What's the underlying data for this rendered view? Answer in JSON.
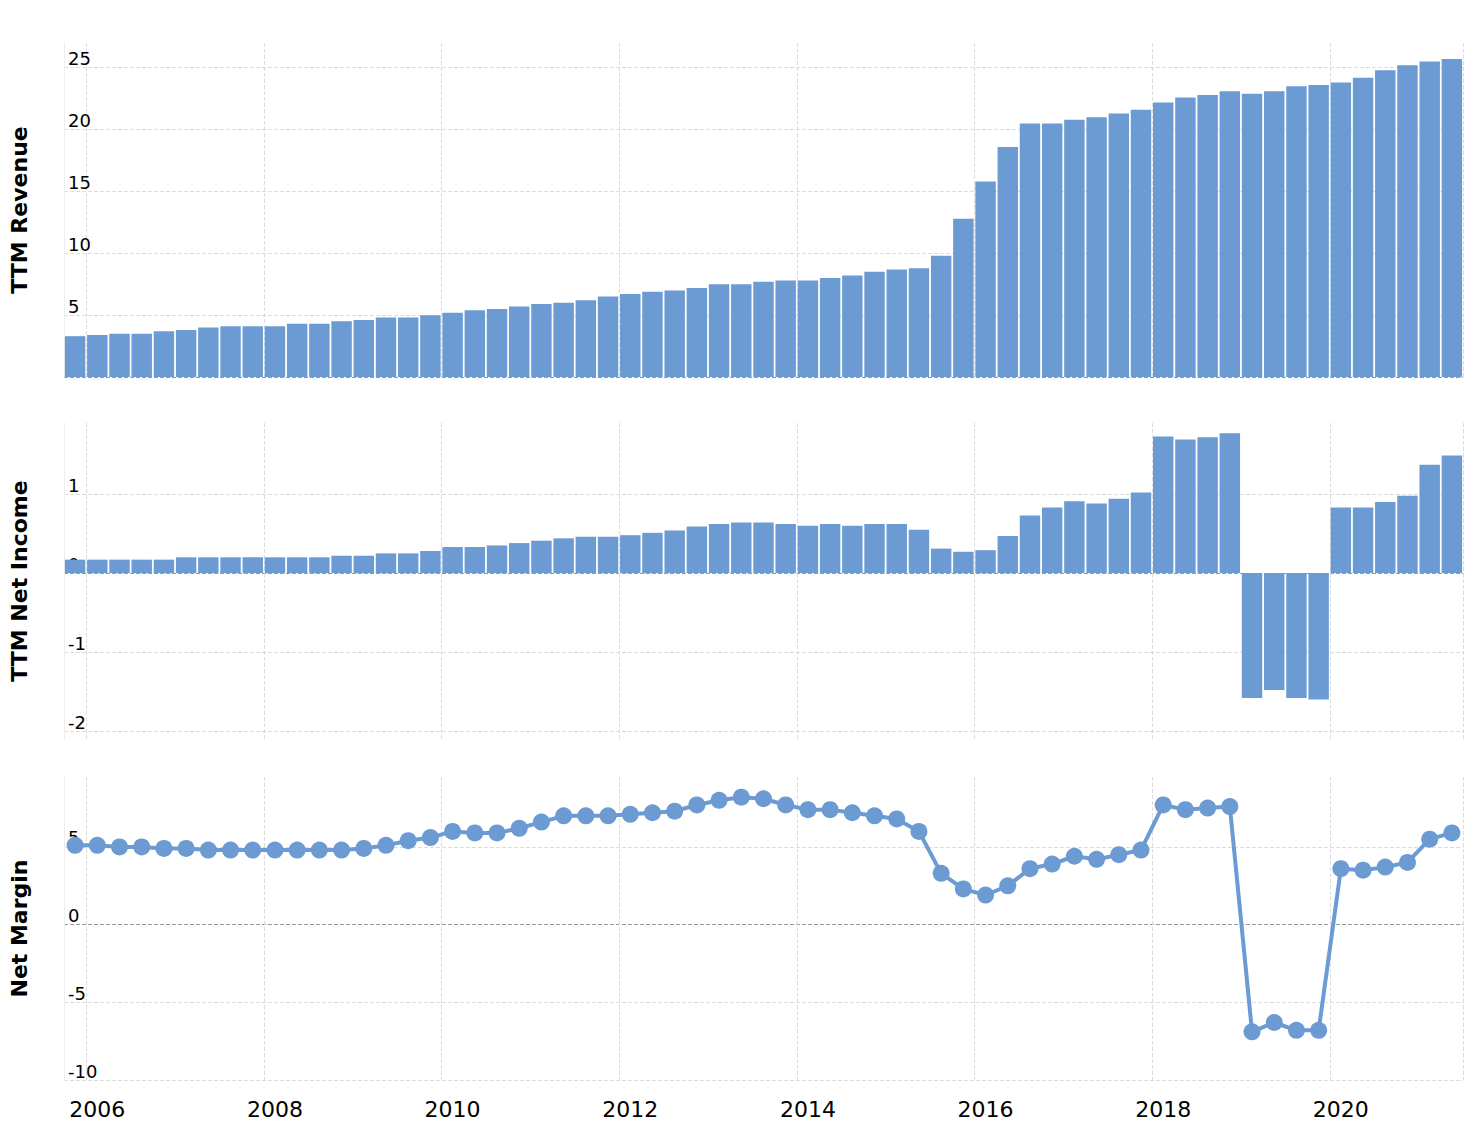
{
  "chart_data": [
    {
      "type": "bar",
      "ylabel": "TTM Revenue",
      "color": "#6b9bd2",
      "grid": true,
      "tick_labels": "y",
      "categories": [
        null,
        "2006",
        null,
        null,
        null,
        null,
        null,
        null,
        null,
        "2008",
        null,
        null,
        null,
        null,
        null,
        null,
        null,
        "2010",
        null,
        null,
        null,
        null,
        null,
        null,
        null,
        "2012",
        null,
        null,
        null,
        null,
        null,
        null,
        null,
        "2014",
        null,
        null,
        null,
        null,
        null,
        null,
        null,
        "2016",
        null,
        null,
        null,
        null,
        null,
        null,
        null,
        "2018",
        null,
        null,
        null,
        null,
        null,
        null,
        null,
        "2020",
        null,
        null,
        null,
        null,
        null
      ],
      "values": [
        3.3,
        3.4,
        3.5,
        3.5,
        3.7,
        3.8,
        4.0,
        4.1,
        4.1,
        4.1,
        4.3,
        4.3,
        4.5,
        4.6,
        4.8,
        4.8,
        5.0,
        5.2,
        5.4,
        5.5,
        5.7,
        5.9,
        6.0,
        6.2,
        6.5,
        6.7,
        6.9,
        7.0,
        7.2,
        7.5,
        7.5,
        7.7,
        7.8,
        7.8,
        8.0,
        8.2,
        8.5,
        8.7,
        8.8,
        9.8,
        12.8,
        15.8,
        18.6,
        20.5,
        20.5,
        20.8,
        21.0,
        21.3,
        21.6,
        22.2,
        22.6,
        22.8,
        23.1,
        22.9,
        23.1,
        23.5,
        23.6,
        23.8,
        24.2,
        24.8,
        25.2,
        25.5,
        25.7
      ],
      "ylim": [
        0,
        27
      ],
      "yticks": [
        0,
        5,
        10,
        15,
        20,
        25
      ]
    },
    {
      "type": "bar",
      "ylabel": "TTM Net Income",
      "color": "#6b9bd2",
      "grid": true,
      "tick_labels": "y",
      "categories": [
        null,
        "2006",
        null,
        null,
        null,
        null,
        null,
        null,
        null,
        "2008",
        null,
        null,
        null,
        null,
        null,
        null,
        null,
        "2010",
        null,
        null,
        null,
        null,
        null,
        null,
        null,
        "2012",
        null,
        null,
        null,
        null,
        null,
        null,
        null,
        "2014",
        null,
        null,
        null,
        null,
        null,
        null,
        null,
        "2016",
        null,
        null,
        null,
        null,
        null,
        null,
        null,
        "2018",
        null,
        null,
        null,
        null,
        null,
        null,
        null,
        "2020",
        null,
        null,
        null,
        null,
        null
      ],
      "values": [
        0.17,
        0.17,
        0.17,
        0.17,
        0.17,
        0.2,
        0.2,
        0.2,
        0.2,
        0.2,
        0.2,
        0.2,
        0.22,
        0.22,
        0.25,
        0.25,
        0.28,
        0.33,
        0.33,
        0.35,
        0.38,
        0.41,
        0.44,
        0.46,
        0.46,
        0.48,
        0.51,
        0.54,
        0.59,
        0.62,
        0.64,
        0.64,
        0.62,
        0.6,
        0.62,
        0.6,
        0.62,
        0.62,
        0.55,
        0.31,
        0.27,
        0.29,
        0.47,
        0.73,
        0.83,
        0.91,
        0.88,
        0.94,
        1.02,
        1.73,
        1.69,
        1.72,
        1.77,
        -1.58,
        -1.48,
        -1.58,
        -1.6,
        0.83,
        0.83,
        0.9,
        0.98,
        1.37,
        1.49
      ],
      "ylim": [
        -2.1,
        1.9
      ],
      "yticks": [
        -2,
        -1,
        0,
        1
      ]
    },
    {
      "type": "line",
      "ylabel": "Net Margin",
      "color": "#6b9bd2",
      "marker": "circle",
      "grid": true,
      "categories": [
        null,
        "2006",
        null,
        null,
        null,
        null,
        null,
        null,
        null,
        "2008",
        null,
        null,
        null,
        null,
        null,
        null,
        null,
        "2010",
        null,
        null,
        null,
        null,
        null,
        null,
        null,
        "2012",
        null,
        null,
        null,
        null,
        null,
        null,
        null,
        "2014",
        null,
        null,
        null,
        null,
        null,
        null,
        null,
        "2016",
        null,
        null,
        null,
        null,
        null,
        null,
        null,
        "2018",
        null,
        null,
        null,
        null,
        null,
        null,
        null,
        "2020",
        null,
        null,
        null,
        null,
        null
      ],
      "values": [
        5.1,
        5.1,
        5.0,
        5.0,
        4.9,
        4.9,
        4.8,
        4.8,
        4.8,
        4.8,
        4.8,
        4.8,
        4.8,
        4.9,
        5.1,
        5.4,
        5.6,
        6.0,
        5.9,
        5.9,
        6.2,
        6.6,
        7.0,
        7.0,
        7.0,
        7.1,
        7.2,
        7.3,
        7.7,
        8.0,
        8.2,
        8.1,
        7.7,
        7.4,
        7.4,
        7.2,
        7.0,
        6.8,
        6.0,
        3.3,
        2.3,
        1.9,
        2.5,
        3.6,
        3.9,
        4.4,
        4.2,
        4.5,
        4.8,
        7.7,
        7.4,
        7.5,
        7.6,
        -6.9,
        -6.3,
        -6.8,
        -6.8,
        3.6,
        3.5,
        3.7,
        4.0,
        5.5,
        5.9
      ],
      "ylim": [
        -10,
        9.5
      ],
      "yticks": [
        -10,
        -5,
        0,
        5
      ]
    }
  ]
}
